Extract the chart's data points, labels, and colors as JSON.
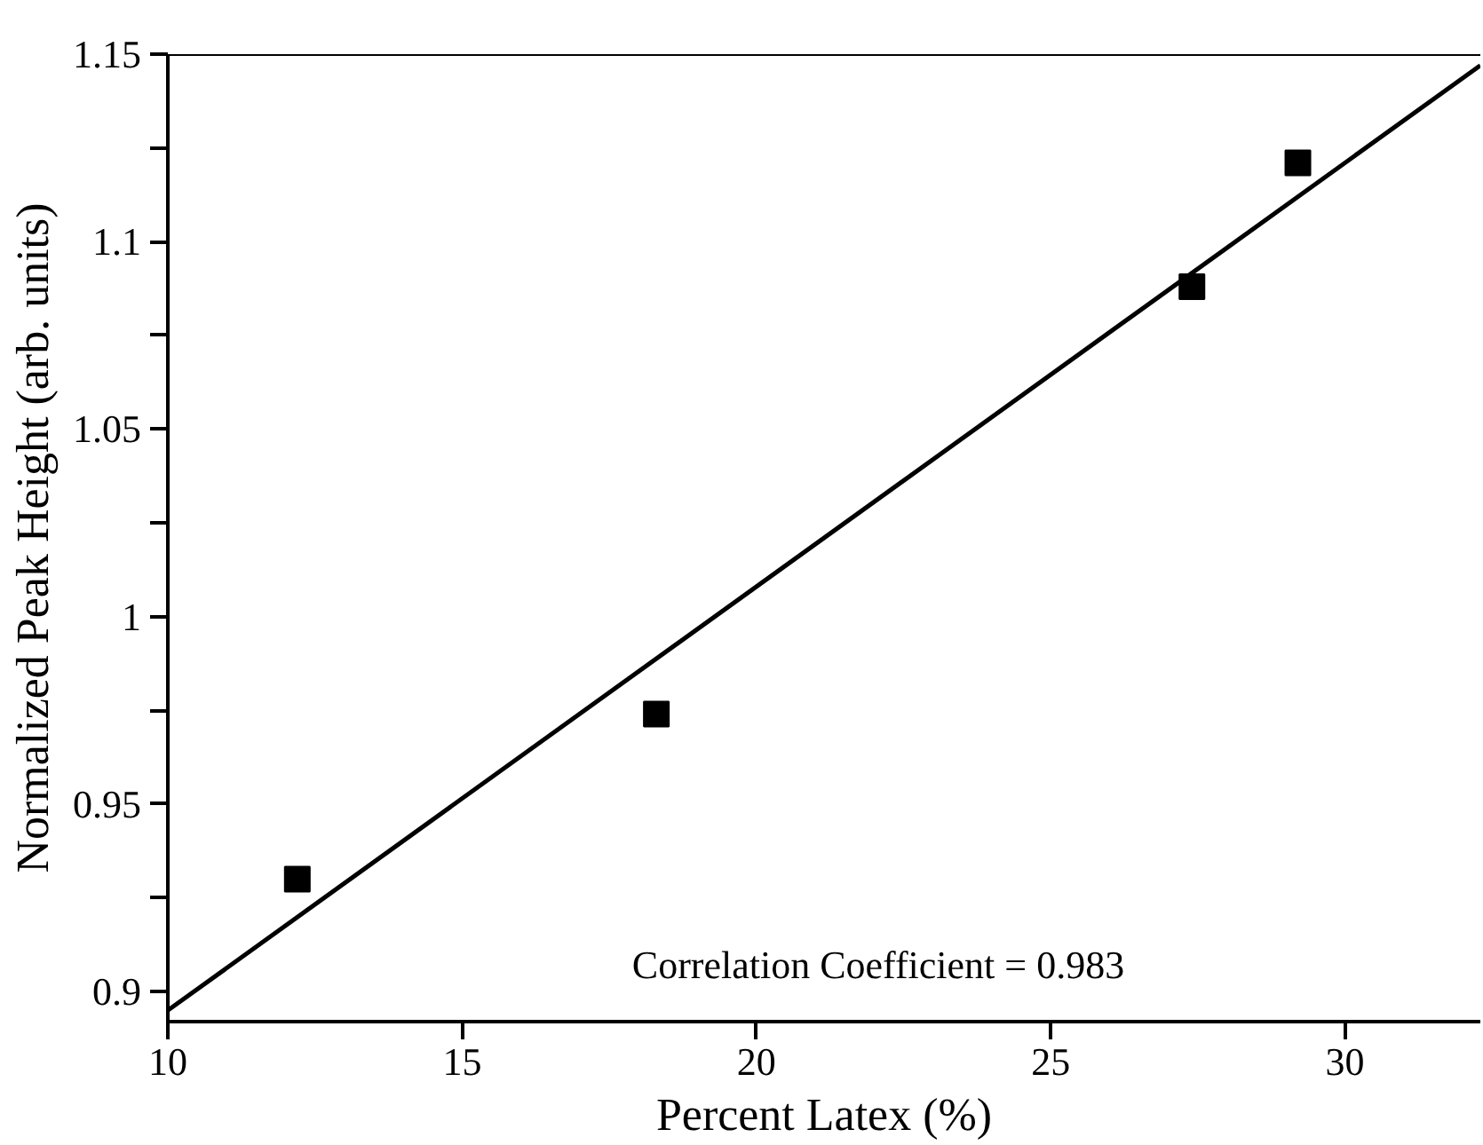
{
  "chart_data": {
    "type": "scatter",
    "xlabel": "Percent Latex (%)",
    "ylabel": "Normalized Peak Height (arb. units)",
    "x": [
      12.2,
      18.3,
      27.4,
      29.2
    ],
    "series": [
      {
        "color": "#000000",
        "marker": "square",
        "values": [
          0.93,
          0.974,
          1.088,
          1.121
        ]
      },
      {
        "type": "line",
        "color": "#000000",
        "x": [
          10,
          32.3
        ],
        "values": [
          0.895,
          1.147
        ]
      }
    ],
    "xlim": [
      10,
      32.3
    ],
    "ylim": [
      0.892,
      1.15
    ],
    "xticks": [
      10,
      15,
      20,
      25,
      30
    ],
    "yticks": [
      {
        "value": 0.9,
        "label": "0.9"
      },
      {
        "value": 0.925,
        "label": null
      },
      {
        "value": 0.95,
        "label": "0.95"
      },
      {
        "value": 0.975,
        "label": null
      },
      {
        "value": 1,
        "label": "1"
      },
      {
        "value": 1.025,
        "label": null
      },
      {
        "value": 1.05,
        "label": "1.05"
      },
      {
        "value": 1.075,
        "label": null
      },
      {
        "value": 1.1,
        "label": "1.1"
      },
      {
        "value": 1.125,
        "label": null
      },
      {
        "value": 1.15,
        "label": "1.15"
      }
    ],
    "annotations": [
      "Correlation Coefficient = 0.983"
    ],
    "grid": false
  }
}
